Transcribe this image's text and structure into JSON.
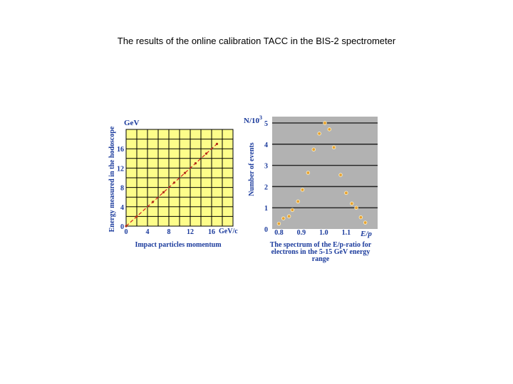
{
  "slide": {
    "title": "The results of the online calibration TACC in the BIS-2 spectrometer"
  },
  "chart_data": [
    {
      "type": "scatter",
      "title": "",
      "xlabel": "Impact particles momentum",
      "ylabel": "Energy measured in the hodoscope",
      "x_unit": "GeV/c",
      "y_unit": "GeV",
      "xlim": [
        0,
        20
      ],
      "ylim": [
        0,
        20
      ],
      "x_ticks": [
        0,
        4,
        8,
        12,
        16
      ],
      "y_ticks": [
        0,
        4,
        8,
        12,
        16
      ],
      "grid": true,
      "background": "#fdfd8a",
      "gridline_color": "#000000",
      "series": [
        {
          "x": [
            0,
            2,
            5,
            7,
            9,
            11,
            13,
            15,
            17
          ],
          "y": [
            0,
            2,
            5,
            7,
            9,
            11,
            13,
            15,
            17
          ]
        }
      ],
      "fit_line": {
        "x": [
          0,
          17
        ],
        "y": [
          0,
          17
        ],
        "color": "#d42020"
      }
    },
    {
      "type": "scatter",
      "title": "",
      "xlabel": "E/p",
      "ylabel": "Number of events",
      "y_unit_label": "N/10",
      "y_unit_exponent": "3",
      "caption": "The spectrum of the E/p-ratio for electrons in the 5-15 GeV energy range",
      "xlim": [
        0.77,
        1.24
      ],
      "ylim": [
        0,
        5.3
      ],
      "x_ticks": [
        0.8,
        0.9,
        1.0,
        1.1
      ],
      "y_ticks": [
        0,
        1,
        2,
        3,
        4,
        5
      ],
      "grid": true,
      "background": "#b2b2b2",
      "marker_color": "#e8a030",
      "series": [
        {
          "x": [
            0.8,
            0.82,
            0.845,
            0.86,
            0.885,
            0.905,
            0.93,
            0.955,
            0.98,
            1.005,
            1.025,
            1.045,
            1.075,
            1.1,
            1.125,
            1.145,
            1.165,
            1.185
          ],
          "y": [
            0.25,
            0.5,
            0.6,
            0.9,
            1.3,
            1.85,
            2.65,
            3.75,
            4.5,
            5.0,
            4.7,
            3.85,
            2.55,
            1.7,
            1.2,
            1.0,
            0.55,
            0.3
          ]
        }
      ]
    }
  ]
}
